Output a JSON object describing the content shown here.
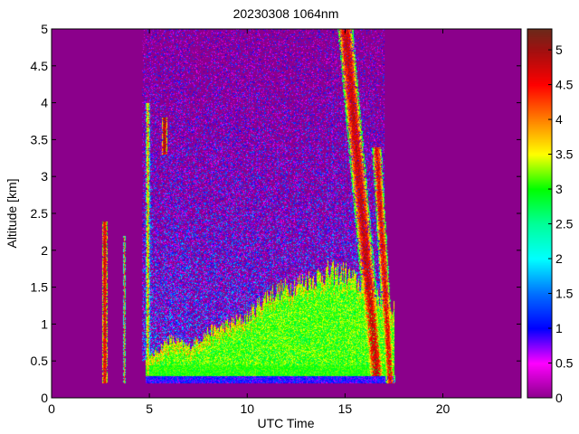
{
  "chart_data": {
    "type": "heatmap",
    "title": "20230308 1064nm",
    "xlabel": "UTC Time",
    "ylabel": "Altitude [km]",
    "xlim": [
      0,
      24
    ],
    "ylim": [
      0,
      5
    ],
    "clim": [
      0,
      5.3
    ],
    "xticks": [
      "0",
      "5",
      "10",
      "15",
      "20"
    ],
    "yticks": [
      "0",
      "0.5",
      "1",
      "1.5",
      "2",
      "2.5",
      "3",
      "3.5",
      "4",
      "4.5",
      "5"
    ],
    "colorbar_ticks": [
      "0",
      "0.5",
      "1",
      "1.5",
      "2",
      "2.5",
      "3",
      "3.5",
      "4",
      "4.5",
      "5"
    ],
    "colormap": [
      {
        "value": 0,
        "color": "#8b008b"
      },
      {
        "value": 0.5,
        "color": "#ff00ff"
      },
      {
        "value": 1,
        "color": "#0000ff"
      },
      {
        "value": 1.5,
        "color": "#0070ff"
      },
      {
        "value": 2,
        "color": "#00ffff"
      },
      {
        "value": 2.5,
        "color": "#00ff99"
      },
      {
        "value": 3,
        "color": "#00ff00"
      },
      {
        "value": 3.5,
        "color": "#ffff00"
      },
      {
        "value": 4,
        "color": "#ff8000"
      },
      {
        "value": 4.5,
        "color": "#ff0000"
      },
      {
        "value": 5,
        "color": "#a01010"
      },
      {
        "value": 5.3,
        "color": "#6b2a1a"
      }
    ],
    "background_value": 0,
    "boundary_layer_top": {
      "time": [
        4.8,
        6,
        7,
        8,
        9,
        10,
        11,
        12,
        13,
        14,
        15,
        16,
        17.5
      ],
      "altitude": [
        0.5,
        0.8,
        0.7,
        0.9,
        1.0,
        1.1,
        1.4,
        1.5,
        1.6,
        1.7,
        1.7,
        1.5,
        1.2
      ]
    },
    "boundary_layer_value": 3.0,
    "surface_layer": {
      "time": [
        4.8,
        17.5
      ],
      "altitude": [
        0.2,
        0.3
      ],
      "value": 1.0
    },
    "noise_region": {
      "time": [
        4.6,
        17.0
      ],
      "altitude": [
        0.5,
        5.0
      ],
      "value_range": [
        0,
        2
      ]
    },
    "cloud_features": [
      {
        "time_top": 15.0,
        "time_bottom": 16.6,
        "altitude": [
          0.3,
          5.0
        ],
        "width_h": 0.8,
        "value": 4.8
      },
      {
        "time_top": 16.6,
        "time_bottom": 17.3,
        "altitude": [
          0.2,
          3.4
        ],
        "width_h": 0.5,
        "value": 4.6
      },
      {
        "time_top": 2.7,
        "time_bottom": 2.7,
        "altitude": [
          0.2,
          2.4
        ],
        "width_h": 0.3,
        "value": 4.7
      },
      {
        "time_top": 3.7,
        "time_bottom": 3.7,
        "altitude": [
          0.2,
          2.2
        ],
        "width_h": 0.1,
        "value": 4.0
      },
      {
        "time_top": 4.9,
        "time_bottom": 4.9,
        "altitude": [
          0.3,
          4.0
        ],
        "width_h": 0.2,
        "value": 3.8
      },
      {
        "time_top": 5.75,
        "time_bottom": 5.75,
        "altitude": [
          3.3,
          3.8
        ],
        "width_h": 0.3,
        "value": 5.0
      }
    ]
  }
}
